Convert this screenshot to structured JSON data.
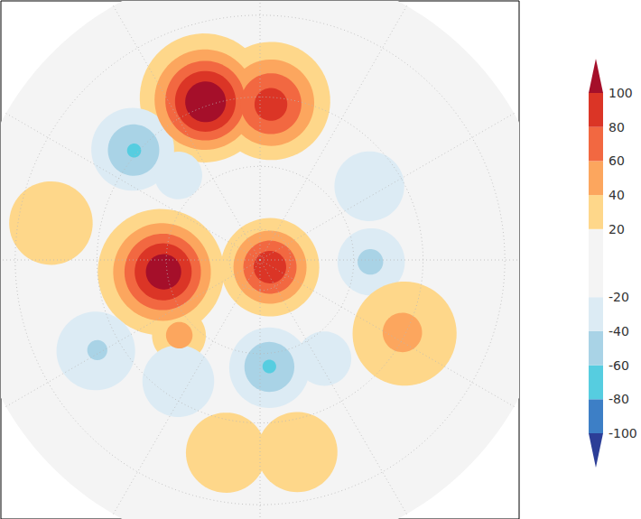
{
  "chart_data": {
    "type": "contour_map",
    "lat_lim": [
      10,
      90
    ],
    "parallels": [
      20,
      40,
      60,
      80
    ],
    "meridians": [
      0,
      30,
      60,
      90,
      120,
      150,
      180,
      210,
      240,
      270,
      300,
      330
    ],
    "grid": true,
    "levels": [
      -100,
      -80,
      -60,
      -40,
      -20,
      20,
      40,
      60,
      80,
      100
    ],
    "colors": [
      "#2c3e97",
      "#3d7fc6",
      "#56cde0",
      "#a9d3e6",
      "#dcebf4",
      "#f4f4f4",
      "#fed78a",
      "#fca65e",
      "#f26841",
      "#db3526",
      "#a50f2a"
    ],
    "colorbar": {
      "lim": [
        -100,
        100
      ],
      "ticks": [
        100,
        80,
        60,
        40,
        20,
        -20,
        -40,
        -60,
        -80,
        -100
      ]
    },
    "anomalies": [
      {
        "lat": 39,
        "lon": -161,
        "value": 120,
        "radius": 17
      },
      {
        "lat": 42,
        "lon": 176,
        "value": 90,
        "radius": 16
      },
      {
        "lat": 39,
        "lon": -131,
        "value": -62,
        "radius": 11
      },
      {
        "lat": 53,
        "lon": -136,
        "value": -35,
        "radius": 7
      },
      {
        "lat": 59,
        "lon": -83,
        "value": 115,
        "radius": 19
      },
      {
        "lat": 86,
        "lon": 54,
        "value": 95,
        "radius": 16
      },
      {
        "lat": 55,
        "lon": -47,
        "value": 50,
        "radius": 8
      },
      {
        "lat": 28,
        "lon": -100,
        "value": 35,
        "radius": 10
      },
      {
        "lat": 49,
        "lon": 124,
        "value": -38,
        "radius": 10
      },
      {
        "lat": 55,
        "lon": 89,
        "value": -45,
        "radius": 10
      },
      {
        "lat": 41,
        "lon": 63,
        "value": 45,
        "radius": 14
      },
      {
        "lat": 32,
        "lon": -10,
        "value": 38,
        "radius": 10
      },
      {
        "lat": 32,
        "lon": 11,
        "value": 38,
        "radius": 10
      },
      {
        "lat": 56,
        "lon": 5,
        "value": -62,
        "radius": 12
      },
      {
        "lat": 53,
        "lon": 33,
        "value": -35,
        "radius": 8
      },
      {
        "lat": 34,
        "lon": -61,
        "value": -42,
        "radius": 10
      },
      {
        "lat": 45,
        "lon": -34,
        "value": -28,
        "radius": 10
      }
    ]
  }
}
